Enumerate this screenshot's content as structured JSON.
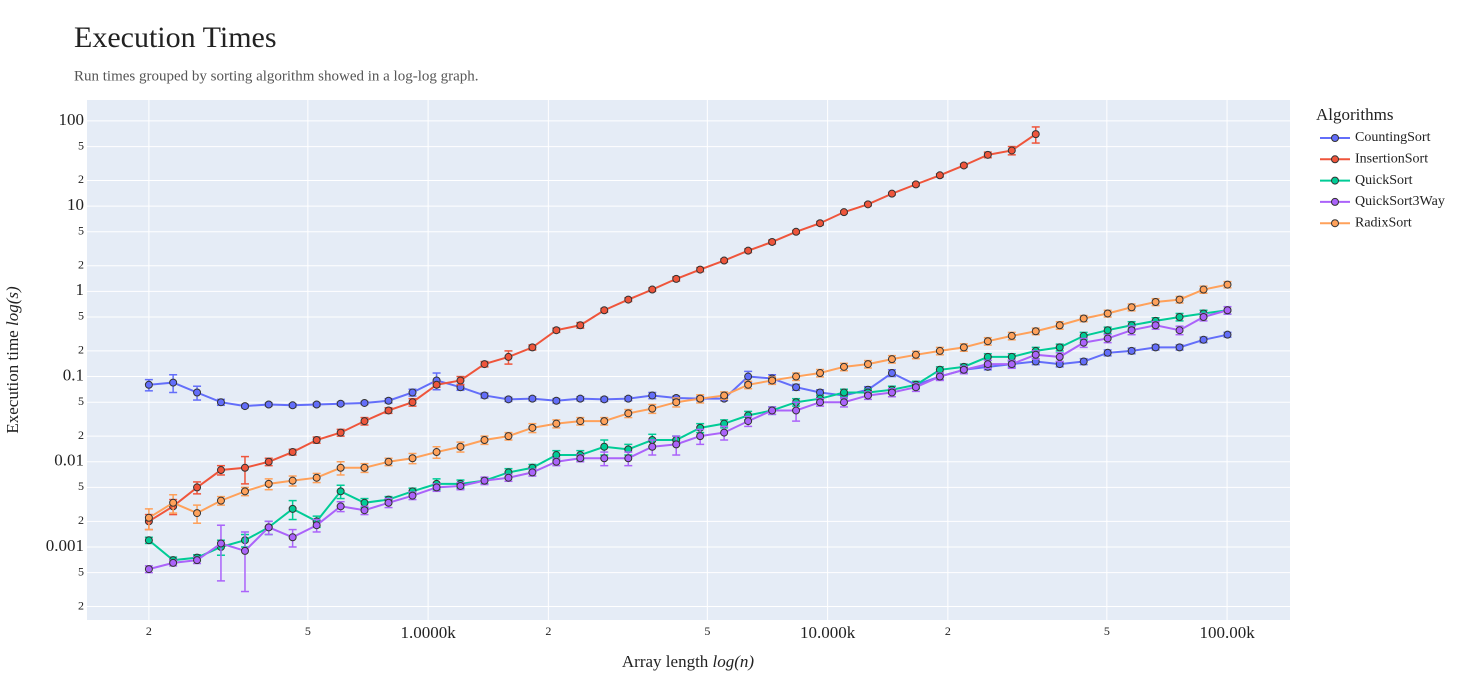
{
  "chart_data": {
    "type": "line",
    "title": "Execution Times",
    "subtitle": "Run times grouped by sorting algorithm showed in a log-log graph.",
    "x_label": "Array length",
    "x_label_unit": "log(n)",
    "y_label": "Execution time",
    "y_label_unit": "log(s)",
    "legend_title": "Algorithms",
    "legend_position": "right",
    "log_x": true,
    "log_y": true,
    "grid": true,
    "xlim": [
      140,
      143700
    ],
    "ylim": [
      0.000139,
      176
    ],
    "xticks": [
      {
        "value": 200,
        "label": "2"
      },
      {
        "value": 500,
        "label": "5"
      },
      {
        "value": 1000,
        "label": "1.0000k"
      },
      {
        "value": 2000,
        "label": "2"
      },
      {
        "value": 5000,
        "label": "5"
      },
      {
        "value": 10000,
        "label": "10.000k"
      },
      {
        "value": 20000,
        "label": "2"
      },
      {
        "value": 50000,
        "label": "5"
      },
      {
        "value": 100000,
        "label": "100.00k"
      }
    ],
    "yticks": [
      {
        "value": 0.0002,
        "label": "2"
      },
      {
        "value": 0.0005,
        "label": "5"
      },
      0.001,
      {
        "value": 0.002,
        "label": "2"
      },
      {
        "value": 0.005,
        "label": "5"
      },
      0.01,
      {
        "value": 0.02,
        "label": "2"
      },
      {
        "value": 0.05,
        "label": "5"
      },
      0.1,
      {
        "value": 0.2,
        "label": "2"
      },
      {
        "value": 0.5,
        "label": "5"
      },
      1,
      {
        "value": 2,
        "label": "2"
      },
      {
        "value": 5,
        "label": "5"
      },
      10,
      {
        "value": 20,
        "label": "2"
      },
      {
        "value": 50,
        "label": "5"
      },
      100
    ],
    "x": [
      200,
      230,
      264,
      303,
      348,
      399,
      458,
      526,
      604,
      693,
      796,
      914,
      1050,
      1205,
      1384,
      1589,
      1824,
      2094,
      2404,
      2760,
      3170,
      3640,
      4179,
      4797,
      5508,
      6325,
      7262,
      8338,
      9573,
      10990,
      12619,
      14489,
      16635,
      19100,
      21930,
      25179,
      28907,
      33190,
      38107,
      43755,
      50238,
      57677,
      66222,
      76030,
      87303,
      100237
    ],
    "series": [
      {
        "name": "CountingSort",
        "color": "#636efa",
        "values": [
          0.08,
          0.085,
          0.065,
          0.05,
          0.045,
          0.047,
          0.046,
          0.047,
          0.048,
          0.049,
          0.052,
          0.065,
          0.09,
          0.075,
          0.06,
          0.054,
          0.055,
          0.052,
          0.055,
          0.054,
          0.055,
          0.06,
          0.056,
          0.055,
          0.055,
          0.1,
          0.095,
          0.075,
          0.065,
          0.06,
          0.07,
          0.11,
          0.08,
          0.1,
          0.12,
          0.13,
          0.14,
          0.15,
          0.14,
          0.15,
          0.19,
          0.2,
          0.22,
          0.22,
          0.27,
          0.31
        ],
        "errors": [
          0.012,
          0.02,
          0.012,
          0.004,
          0.002,
          0.002,
          0.002,
          0.002,
          0.002,
          0.002,
          0.003,
          0.006,
          0.02,
          0.006,
          0.004,
          0.003,
          0.003,
          0.003,
          0.003,
          0.003,
          0.003,
          0.005,
          0.003,
          0.003,
          0.003,
          0.015,
          0.01,
          0.006,
          0.005,
          0.005,
          0.006,
          0.01,
          0.007,
          0.008,
          0.01,
          0.01,
          0.01,
          0.012,
          0.01,
          0.012,
          0.015,
          0.015,
          0.015,
          0.015,
          0.02,
          0.02
        ]
      },
      {
        "name": "InsertionSort",
        "color": "#ef553b",
        "values": [
          0.002,
          0.003,
          0.005,
          0.008,
          0.0085,
          0.01,
          0.013,
          0.018,
          0.022,
          0.03,
          0.04,
          0.05,
          0.08,
          0.09,
          0.14,
          0.17,
          0.22,
          0.35,
          0.4,
          0.6,
          0.8,
          1.05,
          1.4,
          1.8,
          2.3,
          3.0,
          3.8,
          5.0,
          6.3,
          8.5,
          10.5,
          14,
          18,
          23,
          30,
          40,
          45,
          70,
          null,
          null,
          null,
          null,
          null,
          null,
          null,
          null
        ],
        "errors": [
          0.0004,
          0.0006,
          0.0008,
          0.001,
          0.003,
          0.001,
          0.001,
          0.0015,
          0.002,
          0.003,
          0.003,
          0.005,
          0.005,
          0.01,
          0.01,
          0.03,
          0.015,
          0.02,
          0.03,
          0.03,
          0.04,
          0.05,
          0.08,
          0.1,
          0.1,
          0.15,
          0.2,
          0.2,
          0.3,
          0.3,
          0.4,
          0.5,
          0.7,
          1,
          1.2,
          3,
          5,
          15,
          null,
          null,
          null,
          null,
          null,
          null,
          null,
          null
        ]
      },
      {
        "name": "QuickSort",
        "color": "#00cc96",
        "values": [
          0.0012,
          0.0007,
          0.00075,
          0.001,
          0.0012,
          0.0017,
          0.0028,
          0.002,
          0.0045,
          0.0033,
          0.0036,
          0.0045,
          0.0055,
          0.0055,
          0.006,
          0.0075,
          0.0085,
          0.012,
          0.012,
          0.015,
          0.014,
          0.018,
          0.018,
          0.025,
          0.028,
          0.035,
          0.04,
          0.05,
          0.055,
          0.065,
          0.065,
          0.07,
          0.08,
          0.12,
          0.13,
          0.17,
          0.17,
          0.2,
          0.22,
          0.3,
          0.35,
          0.4,
          0.45,
          0.5,
          0.55,
          0.6
        ],
        "errors": [
          0.0001,
          6e-05,
          6e-05,
          0.0002,
          0.0002,
          0.0003,
          0.0007,
          0.0003,
          0.0008,
          0.0004,
          0.0003,
          0.0004,
          0.0008,
          0.0006,
          0.0005,
          0.0008,
          0.0008,
          0.0015,
          0.0015,
          0.003,
          0.002,
          0.003,
          0.002,
          0.003,
          0.003,
          0.004,
          0.004,
          0.005,
          0.005,
          0.006,
          0.006,
          0.007,
          0.008,
          0.01,
          0.01,
          0.015,
          0.015,
          0.02,
          0.02,
          0.03,
          0.03,
          0.04,
          0.04,
          0.05,
          0.05,
          0.06
        ]
      },
      {
        "name": "QuickSort3Way",
        "color": "#ab63fa",
        "values": [
          0.00055,
          0.00065,
          0.0007,
          0.0011,
          0.0009,
          0.0017,
          0.0013,
          0.0018,
          0.003,
          0.0027,
          0.0033,
          0.004,
          0.005,
          0.0052,
          0.006,
          0.0065,
          0.0075,
          0.01,
          0.011,
          0.011,
          0.011,
          0.015,
          0.016,
          0.02,
          0.022,
          0.03,
          0.04,
          0.04,
          0.05,
          0.05,
          0.06,
          0.065,
          0.075,
          0.1,
          0.12,
          0.14,
          0.14,
          0.18,
          0.17,
          0.25,
          0.28,
          0.35,
          0.4,
          0.35,
          0.5,
          0.6
        ],
        "errors": [
          5e-05,
          5e-05,
          6e-05,
          0.0007,
          0.0006,
          0.0003,
          0.0003,
          0.0003,
          0.0004,
          0.0003,
          0.0004,
          0.0004,
          0.0005,
          0.0005,
          0.0006,
          0.0006,
          0.0007,
          0.001,
          0.001,
          0.002,
          0.002,
          0.003,
          0.004,
          0.004,
          0.004,
          0.004,
          0.004,
          0.01,
          0.005,
          0.006,
          0.006,
          0.007,
          0.008,
          0.01,
          0.012,
          0.015,
          0.015,
          0.02,
          0.02,
          0.03,
          0.03,
          0.04,
          0.04,
          0.04,
          0.05,
          0.06
        ]
      },
      {
        "name": "RadixSort",
        "color": "#ffa15a",
        "values": [
          0.0022,
          0.0033,
          0.0025,
          0.0035,
          0.0045,
          0.0055,
          0.006,
          0.0065,
          0.0085,
          0.0085,
          0.01,
          0.011,
          0.013,
          0.015,
          0.018,
          0.02,
          0.025,
          0.028,
          0.03,
          0.03,
          0.037,
          0.042,
          0.05,
          0.055,
          0.06,
          0.08,
          0.09,
          0.1,
          0.11,
          0.13,
          0.14,
          0.16,
          0.18,
          0.2,
          0.22,
          0.26,
          0.3,
          0.34,
          0.4,
          0.48,
          0.55,
          0.65,
          0.75,
          0.8,
          1.05,
          1.2
        ],
        "errors": [
          0.0006,
          0.0008,
          0.0006,
          0.0004,
          0.0005,
          0.0008,
          0.0008,
          0.0008,
          0.0015,
          0.001,
          0.001,
          0.0015,
          0.002,
          0.002,
          0.002,
          0.002,
          0.003,
          0.003,
          0.003,
          0.003,
          0.004,
          0.005,
          0.006,
          0.006,
          0.006,
          0.008,
          0.009,
          0.01,
          0.011,
          0.013,
          0.014,
          0.016,
          0.018,
          0.02,
          0.022,
          0.026,
          0.03,
          0.03,
          0.04,
          0.04,
          0.05,
          0.06,
          0.07,
          0.07,
          0.1,
          0.1
        ]
      }
    ]
  }
}
